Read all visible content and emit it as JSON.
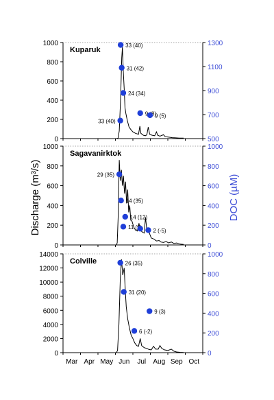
{
  "figure": {
    "ylabel_left": "Discharge (m³/s)",
    "ylabel_right": "DOC (µM)",
    "colors": {
      "line": "#000000",
      "doc": "#1f3fd8",
      "doc_axis": "#3b4bd6",
      "axis": "#000000"
    }
  },
  "chart_data": [
    {
      "type": "line",
      "panel": "Kuparuk",
      "title": "Kuparuk",
      "xlabel": "",
      "x_categories": [
        "Mar",
        "Apr",
        "May",
        "Jun",
        "Jul",
        "Aug",
        "Sep",
        "Oct"
      ],
      "ylabel": "Discharge (m³/s)",
      "ylim": [
        0,
        1000
      ],
      "yticks": [
        0,
        200,
        400,
        600,
        800,
        1000
      ],
      "y2label": "DOC (µM)",
      "y2lim": [
        500,
        1300
      ],
      "y2ticks": [
        500,
        700,
        900,
        1100,
        1300
      ],
      "series": [
        {
          "axis": "left",
          "kind": "line",
          "points": [
            [
              5.0,
              0
            ],
            [
              5.55,
              0
            ],
            [
              5.65,
              5
            ],
            [
              5.72,
              80
            ],
            [
              5.8,
              420
            ],
            [
              5.86,
              840
            ],
            [
              5.9,
              950
            ],
            [
              5.95,
              700
            ],
            [
              6.0,
              520
            ],
            [
              6.05,
              320
            ],
            [
              6.1,
              260
            ],
            [
              6.18,
              190
            ],
            [
              6.28,
              120
            ],
            [
              6.38,
              95
            ],
            [
              6.5,
              70
            ],
            [
              6.65,
              55
            ],
            [
              6.82,
              45
            ],
            [
              6.9,
              130
            ],
            [
              6.96,
              55
            ],
            [
              7.1,
              35
            ],
            [
              7.22,
              30
            ],
            [
              7.3,
              40
            ],
            [
              7.38,
              120
            ],
            [
              7.46,
              45
            ],
            [
              7.6,
              35
            ],
            [
              7.75,
              30
            ],
            [
              7.85,
              70
            ],
            [
              7.92,
              35
            ],
            [
              8.05,
              25
            ],
            [
              8.25,
              40
            ],
            [
              8.35,
              20
            ],
            [
              8.55,
              15
            ],
            [
              8.75,
              10
            ],
            [
              8.95,
              8
            ],
            [
              9.15,
              5
            ],
            [
              9.4,
              5
            ]
          ]
        },
        {
          "axis": "right",
          "kind": "scatter",
          "points": [
            [
              5.8,
              1280
            ],
            [
              5.86,
              1090
            ],
            [
              5.95,
              880
            ],
            [
              6.92,
              712
            ],
            [
              7.48,
              695
            ],
            [
              5.78,
              650
            ]
          ],
          "labels": [
            "33 (40)",
            "31 (42)",
            "24 (34)",
            "9 (8)",
            "9 (5)",
            "33 (40)"
          ]
        }
      ]
    },
    {
      "type": "line",
      "panel": "Sagavanirktok",
      "title": "Sagavanirktok",
      "xlabel": "",
      "x_categories": [
        "Mar",
        "Apr",
        "May",
        "Jun",
        "Jul",
        "Aug",
        "Sep",
        "Oct"
      ],
      "ylabel": "Discharge (m³/s)",
      "ylim": [
        0,
        1000
      ],
      "yticks": [
        0,
        200,
        400,
        600,
        800,
        1000
      ],
      "y2label": "DOC (µM)",
      "y2lim": [
        0,
        1000
      ],
      "y2ticks": [
        0,
        200,
        400,
        600,
        800,
        1000
      ],
      "series": [
        {
          "axis": "left",
          "kind": "line",
          "points": [
            [
              5.0,
              0
            ],
            [
              5.55,
              0
            ],
            [
              5.6,
              20
            ],
            [
              5.66,
              300
            ],
            [
              5.72,
              860
            ],
            [
              5.78,
              650
            ],
            [
              5.84,
              760
            ],
            [
              5.9,
              600
            ],
            [
              5.96,
              700
            ],
            [
              6.02,
              520
            ],
            [
              6.08,
              640
            ],
            [
              6.14,
              420
            ],
            [
              6.2,
              560
            ],
            [
              6.26,
              330
            ],
            [
              6.32,
              400
            ],
            [
              6.38,
              250
            ],
            [
              6.45,
              240
            ],
            [
              6.55,
              180
            ],
            [
              6.65,
              150
            ],
            [
              6.75,
              140
            ],
            [
              6.85,
              220
            ],
            [
              6.92,
              150
            ],
            [
              7.05,
              130
            ],
            [
              7.15,
              120
            ],
            [
              7.22,
              280
            ],
            [
              7.3,
              150
            ],
            [
              7.42,
              130
            ],
            [
              7.55,
              70
            ],
            [
              7.7,
              60
            ],
            [
              7.85,
              40
            ],
            [
              8.0,
              45
            ],
            [
              8.1,
              30
            ],
            [
              8.25,
              25
            ],
            [
              8.4,
              35
            ],
            [
              8.55,
              20
            ],
            [
              8.7,
              30
            ],
            [
              8.85,
              15
            ],
            [
              9.0,
              20
            ],
            [
              9.2,
              8
            ],
            [
              9.4,
              5
            ]
          ]
        },
        {
          "axis": "right",
          "kind": "scatter",
          "points": [
            [
              5.72,
              715
            ],
            [
              5.82,
              450
            ],
            [
              6.06,
              285
            ],
            [
              5.95,
              185
            ],
            [
              6.92,
              165
            ],
            [
              7.38,
              150
            ]
          ],
          "labels": [
            "29 (35)",
            "14 (35)",
            "14 (12)",
            "11 (9)",
            "",
            "2 (-5)"
          ]
        }
      ]
    },
    {
      "type": "line",
      "panel": "Colville",
      "title": "Colville",
      "xlabel": "",
      "x_categories": [
        "Mar",
        "Apr",
        "May",
        "Jun",
        "Jul",
        "Aug",
        "Sep",
        "Oct"
      ],
      "ylabel": "Discharge (m³/s)",
      "ylim": [
        0,
        14000
      ],
      "yticks": [
        0,
        2000,
        4000,
        6000,
        8000,
        10000,
        12000,
        14000
      ],
      "y2label": "DOC (µM)",
      "y2lim": [
        0,
        1000
      ],
      "y2ticks": [
        0,
        200,
        400,
        600,
        800,
        1000
      ],
      "series": [
        {
          "axis": "left",
          "kind": "line",
          "points": [
            [
              5.0,
              0
            ],
            [
              5.55,
              0
            ],
            [
              5.62,
              300
            ],
            [
              5.7,
              4000
            ],
            [
              5.78,
              10500
            ],
            [
              5.85,
              13200
            ],
            [
              5.92,
              11000
            ],
            [
              6.0,
              12000
            ],
            [
              6.06,
              9000
            ],
            [
              6.12,
              6500
            ],
            [
              6.2,
              4800
            ],
            [
              6.3,
              3500
            ],
            [
              6.4,
              2500
            ],
            [
              6.5,
              2000
            ],
            [
              6.6,
              1400
            ],
            [
              6.72,
              1000
            ],
            [
              6.82,
              900
            ],
            [
              6.92,
              2000
            ],
            [
              7.0,
              1000
            ],
            [
              7.15,
              700
            ],
            [
              7.3,
              600
            ],
            [
              7.42,
              450
            ],
            [
              7.55,
              400
            ],
            [
              7.68,
              900
            ],
            [
              7.8,
              500
            ],
            [
              7.95,
              500
            ],
            [
              8.05,
              1000
            ],
            [
              8.15,
              600
            ],
            [
              8.3,
              400
            ],
            [
              8.5,
              300
            ],
            [
              8.7,
              500
            ],
            [
              8.85,
              200
            ],
            [
              9.0,
              100
            ],
            [
              9.2,
              50
            ],
            [
              9.4,
              20
            ]
          ]
        },
        {
          "axis": "right",
          "kind": "scatter",
          "points": [
            [
              5.78,
              910
            ],
            [
              5.98,
              615
            ],
            [
              6.58,
              220
            ],
            [
              7.45,
              420
            ]
          ],
          "labels": [
            "26 (35)",
            "31 (20)",
            "6 (-2)",
            "9 (3)"
          ]
        }
      ]
    }
  ]
}
